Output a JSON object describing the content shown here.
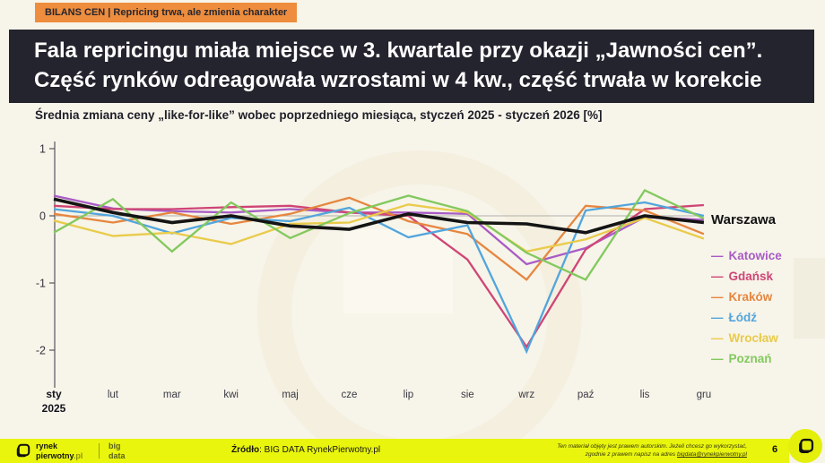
{
  "badge": {
    "label": "BILANS CEN | Repricing trwa, ale zmienia charakter"
  },
  "title": {
    "line1": "Fala repricingu miała miejsce w 3. kwartale przy okazji „Jawności cen”.",
    "line2": "Część rynków odreagowała wzrostami w 4 kw., część trwała w korekcie"
  },
  "subtitle": "Średnia zmiana ceny „like-for-like” wobec poprzedniego miesiąca, styczeń 2025 - styczeń 2026 [%]",
  "chart_data": {
    "type": "line",
    "title": "Średnia zmiana ceny „like-for-like” wobec poprzedniego miesiąca, styczeń 2025 - styczeń 2026 [%]",
    "categories": [
      "sty",
      "lut",
      "mar",
      "kwi",
      "maj",
      "cze",
      "lip",
      "sie",
      "wrz",
      "paź",
      "lis",
      "gru"
    ],
    "first_sublabel": "2025",
    "ylim": [
      -2.4,
      1
    ],
    "yticks": [
      1,
      0,
      -1,
      -2
    ],
    "grid": "zero-line-only",
    "legend_position": "right",
    "series": [
      {
        "name": "Warszawa",
        "color": "#141414",
        "values": [
          0.25,
          0.05,
          -0.1,
          0.0,
          -0.15,
          -0.2,
          0.03,
          -0.1,
          -0.12,
          -0.25,
          0.0,
          -0.1
        ]
      },
      {
        "name": "Katowice",
        "color": "#a85cc5",
        "values": [
          0.3,
          0.11,
          0.07,
          0.05,
          0.1,
          0.05,
          0.05,
          0.03,
          -0.72,
          -0.48,
          -0.02,
          -0.06
        ]
      },
      {
        "name": "Gdańsk",
        "color": "#cf4576",
        "values": [
          0.15,
          0.1,
          0.1,
          0.13,
          0.15,
          0.05,
          0.0,
          -0.65,
          -1.95,
          -0.5,
          0.1,
          0.16
        ]
      },
      {
        "name": "Kraków",
        "color": "#e6863f",
        "values": [
          0.03,
          -0.1,
          0.05,
          -0.12,
          0.03,
          0.27,
          -0.08,
          -0.27,
          -0.95,
          0.15,
          0.08,
          -0.27
        ]
      },
      {
        "name": "Łódź",
        "color": "#52a5dd",
        "values": [
          0.1,
          0.0,
          -0.26,
          -0.03,
          -0.08,
          0.12,
          -0.32,
          -0.14,
          -2.02,
          0.08,
          0.2,
          0.0
        ]
      },
      {
        "name": "Wrocław",
        "color": "#e9cb4a",
        "values": [
          -0.07,
          -0.3,
          -0.25,
          -0.42,
          -0.12,
          -0.1,
          0.17,
          0.05,
          -0.53,
          -0.35,
          -0.03,
          -0.34
        ]
      },
      {
        "name": "Poznań",
        "color": "#82c95e",
        "values": [
          -0.25,
          0.25,
          -0.53,
          0.2,
          -0.33,
          0.04,
          0.3,
          0.07,
          -0.55,
          -0.95,
          0.38,
          -0.04
        ]
      }
    ]
  },
  "footer": {
    "brand_line1": "rynek",
    "brand_line2": "pierwotny",
    "brand_suffix": ".pl",
    "bigdata_line1": "big",
    "bigdata_line2": "data",
    "source_label": "Źródło",
    "source_text": ": BIG DATA RynekPierwotny.pl",
    "copyright_line1": "Ten materiał objęty jest prawem autorskim. Jeżeli chcesz go wykorzystać,",
    "copyright_line2_prefix": "zgodnie z prawem napisz na adres ",
    "copyright_email": "bigdata@rynekpierwotny.pl",
    "page_number": "6"
  },
  "colors": {
    "background": "#f7f4e9",
    "badge": "#ed8d3d",
    "title_block": "#24242e",
    "footer_bar": "#e9f50d"
  }
}
